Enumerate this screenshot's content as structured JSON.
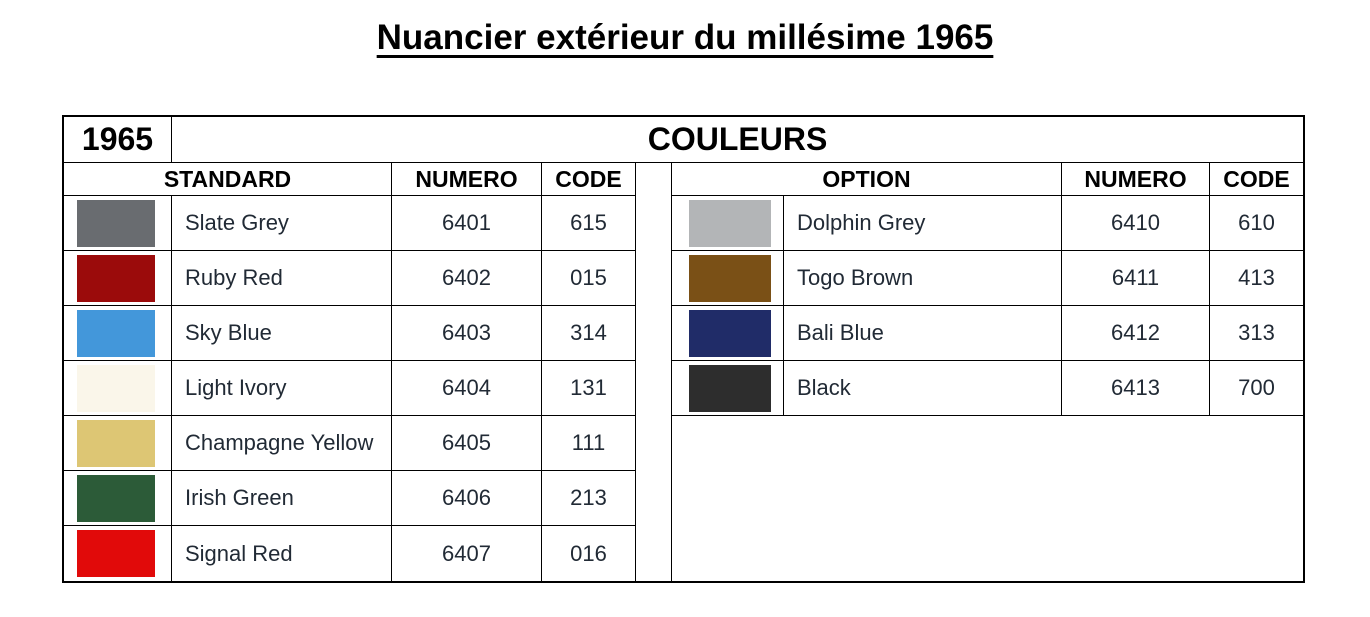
{
  "title": "Nuancier extérieur du millésime 1965",
  "table": {
    "year": "1965",
    "banner": "COULEURS",
    "left": {
      "headers": {
        "name": "STANDARD",
        "numero": "NUMERO",
        "code": "CODE"
      },
      "rows": [
        {
          "name": "Slate Grey",
          "numero": "6401",
          "code": "615",
          "color": "#696c70"
        },
        {
          "name": "Ruby Red",
          "numero": "6402",
          "code": "015",
          "color": "#9b0b0b"
        },
        {
          "name": "Sky Blue",
          "numero": "6403",
          "code": "314",
          "color": "#4397da"
        },
        {
          "name": "Light Ivory",
          "numero": "6404",
          "code": "131",
          "color": "#faf6ea"
        },
        {
          "name": "Champagne Yellow",
          "numero": "6405",
          "code": "111",
          "color": "#ddc674"
        },
        {
          "name": "Irish Green",
          "numero": "6406",
          "code": "213",
          "color": "#2c5b38"
        },
        {
          "name": "Signal Red",
          "numero": "6407",
          "code": "016",
          "color": "#e10a0a"
        }
      ]
    },
    "right": {
      "headers": {
        "name": "OPTION",
        "numero": "NUMERO",
        "code": "CODE"
      },
      "rows": [
        {
          "name": "Dolphin Grey",
          "numero": "6410",
          "code": "610",
          "color": "#b3b5b7"
        },
        {
          "name": "Togo Brown",
          "numero": "6411",
          "code": "413",
          "color": "#7a5016"
        },
        {
          "name": "Bali Blue",
          "numero": "6412",
          "code": "313",
          "color": "#202c68"
        },
        {
          "name": "Black",
          "numero": "6413",
          "code": "700",
          "color": "#2d2d2d"
        }
      ]
    }
  },
  "colors": {
    "text": "#212a35",
    "header_text": "#000000",
    "border": "#000000",
    "background": "#ffffff"
  }
}
